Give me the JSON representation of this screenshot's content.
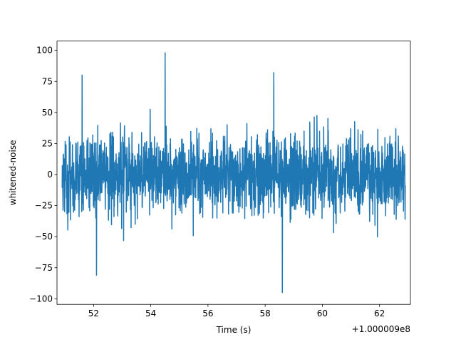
{
  "chart_data": {
    "type": "line",
    "title": "",
    "xlabel": "Time (s)",
    "ylabel": "whitened-noise",
    "offset_label": "+1.000009e8",
    "xlim": [
      50.72,
      63.08
    ],
    "ylim": [
      -104.5,
      107.5
    ],
    "x_ticks": [
      52,
      54,
      56,
      58,
      60,
      62
    ],
    "x_tick_labels": [
      "52",
      "54",
      "56",
      "58",
      "60",
      "62"
    ],
    "y_ticks": [
      -100,
      -75,
      -50,
      -25,
      0,
      25,
      50,
      75,
      100
    ],
    "y_tick_labels": [
      "−100",
      "−75",
      "−50",
      "−25",
      "0",
      "25",
      "50",
      "75",
      "100"
    ],
    "series": [
      {
        "color": "#1f77b4",
        "x_range": [
          50.9,
          62.9
        ],
        "noise_std": 15,
        "notable_points": [
          {
            "x": 54.5,
            "y": 98
          },
          {
            "x": 58.6,
            "y": -95
          },
          {
            "x": 52.1,
            "y": -81
          },
          {
            "x": 51.6,
            "y": 80
          },
          {
            "x": 58.3,
            "y": 82
          }
        ]
      }
    ],
    "grid": false,
    "legend": "none"
  }
}
